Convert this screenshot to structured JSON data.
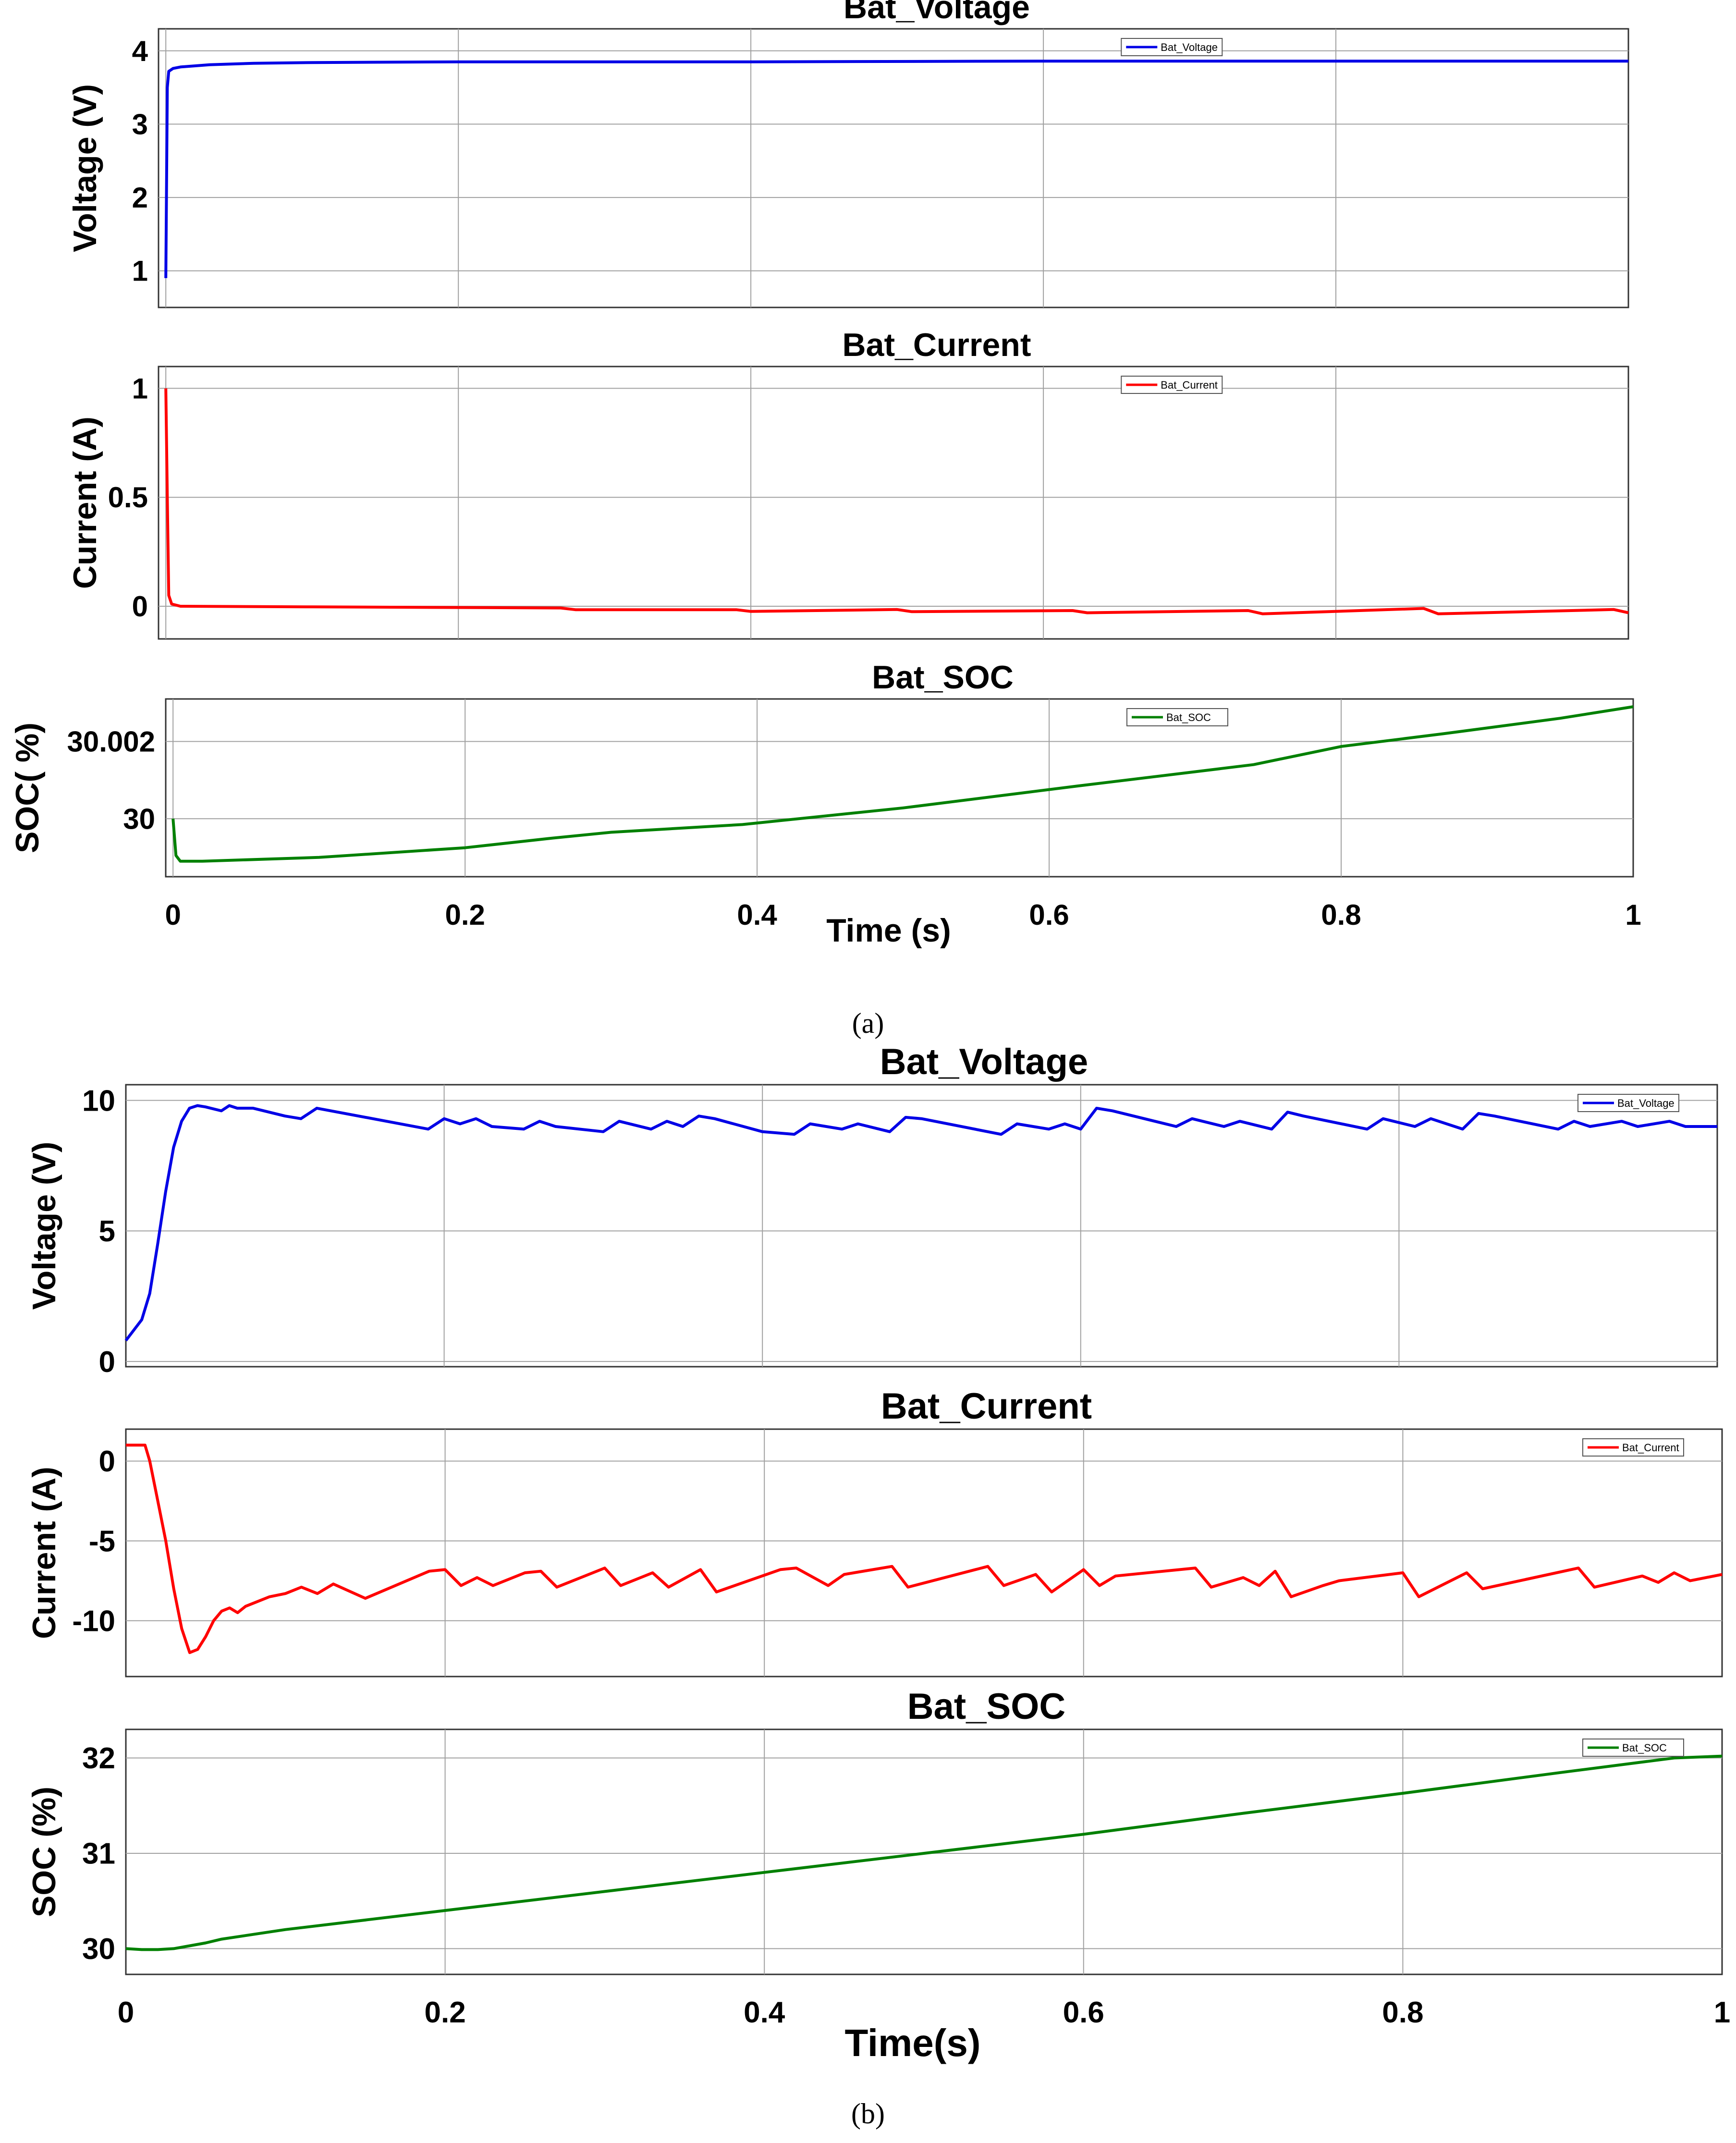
{
  "figure": {
    "captions": [
      "(a)",
      "(b)"
    ]
  },
  "chart_data": [
    {
      "group": "a",
      "type": "line",
      "title": "Bat_Voltage",
      "xlabel": "",
      "ylabel": "Voltage (V)",
      "xlim": [
        -0.005,
        1.0
      ],
      "ylim": [
        0.5,
        4.3
      ],
      "yticks": [
        1,
        2,
        3,
        4
      ],
      "ytick_labels": [
        "1",
        "2",
        "3",
        "4"
      ],
      "xticks": [
        0,
        0.2,
        0.4,
        0.6,
        0.8,
        1
      ],
      "xtick_labels": [],
      "grid": true,
      "legend_position": "top-right",
      "series": [
        {
          "name": "Bat_Voltage",
          "color": "#0000e6",
          "x": [
            0,
            0.001,
            0.002,
            0.005,
            0.01,
            0.03,
            0.06,
            0.1,
            0.2,
            0.4,
            0.6,
            0.8,
            1.0
          ],
          "y": [
            0.9,
            3.5,
            3.72,
            3.76,
            3.78,
            3.81,
            3.83,
            3.84,
            3.85,
            3.85,
            3.86,
            3.86,
            3.86
          ]
        }
      ]
    },
    {
      "group": "a",
      "type": "line",
      "title": "Bat_Current",
      "xlabel": "",
      "ylabel": "Current (A)",
      "xlim": [
        -0.005,
        1.0
      ],
      "ylim": [
        -0.15,
        1.1
      ],
      "yticks": [
        0,
        0.5,
        1
      ],
      "ytick_labels": [
        "0",
        "0.5",
        "1"
      ],
      "xticks": [
        0,
        0.2,
        0.4,
        0.6,
        0.8,
        1
      ],
      "xtick_labels": [],
      "grid": true,
      "legend_position": "top-right",
      "series": [
        {
          "name": "Bat_Current",
          "color": "#ff0000",
          "x": [
            0,
            0.001,
            0.002,
            0.004,
            0.01,
            0.1,
            0.27,
            0.28,
            0.39,
            0.4,
            0.5,
            0.51,
            0.62,
            0.63,
            0.74,
            0.75,
            0.86,
            0.87,
            0.99,
            1.0
          ],
          "y": [
            1.0,
            0.5,
            0.05,
            0.01,
            0.0,
            -0.003,
            -0.008,
            -0.016,
            -0.016,
            -0.024,
            -0.015,
            -0.025,
            -0.02,
            -0.03,
            -0.02,
            -0.035,
            -0.01,
            -0.035,
            -0.015,
            -0.03
          ]
        }
      ]
    },
    {
      "group": "a",
      "type": "line",
      "title": "Bat_SOC",
      "xlabel": "Time (s)",
      "ylabel": "SOC( %)",
      "xlim": [
        -0.005,
        1.0
      ],
      "ylim": [
        29.9985,
        30.0031
      ],
      "yticks": [
        30.0,
        30.002
      ],
      "ytick_labels": [
        "30",
        "30.002"
      ],
      "xticks": [
        0,
        0.2,
        0.4,
        0.6,
        0.8,
        1
      ],
      "xtick_labels": [
        "0",
        "0.2",
        "0.4",
        "0.6",
        "0.8",
        "1"
      ],
      "grid": true,
      "legend_position": "top-right",
      "series": [
        {
          "name": "Bat_SOC",
          "color": "#008000",
          "x": [
            0,
            0.002,
            0.005,
            0.02,
            0.1,
            0.2,
            0.26,
            0.3,
            0.39,
            0.5,
            0.62,
            0.74,
            0.8,
            0.87,
            0.95,
            1.0
          ],
          "y": [
            30.0,
            29.99905,
            29.9989,
            29.9989,
            29.999,
            29.99925,
            29.9995,
            29.99965,
            29.99985,
            30.00028,
            30.00085,
            30.0014,
            30.00187,
            30.0022,
            30.0026,
            30.0029
          ]
        }
      ]
    },
    {
      "group": "b",
      "type": "line",
      "title": "Bat_Voltage",
      "xlabel": "",
      "ylabel": "Voltage (V)",
      "xlim": [
        0,
        1.0
      ],
      "ylim": [
        -0.2,
        10.6
      ],
      "yticks": [
        0,
        5,
        10
      ],
      "ytick_labels": [
        "0",
        "5",
        "10"
      ],
      "xticks": [
        0,
        0.2,
        0.4,
        0.6,
        0.8,
        1
      ],
      "xtick_labels": [],
      "grid": true,
      "legend_position": "top-right",
      "series": [
        {
          "name": "Bat_Voltage",
          "color": "#0000e6",
          "x": [
            0,
            0.01,
            0.015,
            0.02,
            0.025,
            0.03,
            0.035,
            0.04,
            0.045,
            0.05,
            0.06,
            0.065,
            0.07,
            0.08,
            0.1,
            0.11,
            0.12,
            0.19,
            0.2,
            0.21,
            0.22,
            0.23,
            0.25,
            0.26,
            0.27,
            0.3,
            0.31,
            0.33,
            0.34,
            0.35,
            0.36,
            0.37,
            0.4,
            0.42,
            0.43,
            0.45,
            0.46,
            0.48,
            0.49,
            0.5,
            0.55,
            0.56,
            0.58,
            0.59,
            0.6,
            0.61,
            0.62,
            0.66,
            0.67,
            0.69,
            0.7,
            0.72,
            0.73,
            0.74,
            0.78,
            0.79,
            0.81,
            0.82,
            0.84,
            0.85,
            0.86,
            0.9,
            0.91,
            0.92,
            0.94,
            0.95,
            0.97,
            0.98,
            1.0
          ],
          "y": [
            0.8,
            1.6,
            2.6,
            4.5,
            6.5,
            8.2,
            9.2,
            9.7,
            9.8,
            9.75,
            9.6,
            9.8,
            9.7,
            9.7,
            9.4,
            9.3,
            9.7,
            8.9,
            9.3,
            9.1,
            9.3,
            9.0,
            8.9,
            9.2,
            9.0,
            8.8,
            9.2,
            8.9,
            9.2,
            9.0,
            9.4,
            9.3,
            8.8,
            8.7,
            9.1,
            8.9,
            9.1,
            8.8,
            9.35,
            9.3,
            8.7,
            9.1,
            8.9,
            9.1,
            8.9,
            9.7,
            9.6,
            9.0,
            9.3,
            9.0,
            9.2,
            8.9,
            9.55,
            9.4,
            8.9,
            9.3,
            9.0,
            9.3,
            8.9,
            9.5,
            9.4,
            8.9,
            9.2,
            9.0,
            9.2,
            9.0,
            9.2,
            9.0,
            9.0
          ]
        }
      ]
    },
    {
      "group": "b",
      "type": "line",
      "title": "Bat_Current",
      "xlabel": "",
      "ylabel": "Current (A)",
      "xlim": [
        0,
        1.0
      ],
      "ylim": [
        -13.5,
        2.0
      ],
      "yticks": [
        -10,
        -5,
        0
      ],
      "ytick_labels": [
        "-10",
        "-5",
        "0"
      ],
      "xticks": [
        0,
        0.2,
        0.4,
        0.6,
        0.8,
        1
      ],
      "xtick_labels": [],
      "grid": true,
      "legend_position": "top-right",
      "series": [
        {
          "name": "Bat_Current",
          "color": "#ff0000",
          "x": [
            0,
            0.012,
            0.015,
            0.02,
            0.025,
            0.03,
            0.035,
            0.04,
            0.045,
            0.05,
            0.055,
            0.06,
            0.065,
            0.07,
            0.075,
            0.08,
            0.09,
            0.1,
            0.11,
            0.12,
            0.13,
            0.15,
            0.19,
            0.2,
            0.21,
            0.22,
            0.23,
            0.25,
            0.26,
            0.27,
            0.3,
            0.31,
            0.33,
            0.34,
            0.36,
            0.37,
            0.41,
            0.42,
            0.44,
            0.45,
            0.48,
            0.49,
            0.54,
            0.55,
            0.57,
            0.58,
            0.6,
            0.61,
            0.62,
            0.67,
            0.68,
            0.7,
            0.71,
            0.72,
            0.73,
            0.75,
            0.76,
            0.8,
            0.81,
            0.84,
            0.85,
            0.91,
            0.92,
            0.95,
            0.96,
            0.97,
            0.98,
            1.0
          ],
          "y": [
            1.0,
            1.0,
            0.0,
            -2.5,
            -5.0,
            -8.0,
            -10.5,
            -12.0,
            -11.8,
            -11.0,
            -10.0,
            -9.4,
            -9.2,
            -9.5,
            -9.1,
            -8.9,
            -8.5,
            -8.3,
            -7.9,
            -8.3,
            -7.7,
            -8.6,
            -6.9,
            -6.8,
            -7.8,
            -7.3,
            -7.8,
            -7.0,
            -6.9,
            -7.9,
            -6.7,
            -7.8,
            -7.0,
            -7.9,
            -6.8,
            -8.2,
            -6.8,
            -6.7,
            -7.8,
            -7.1,
            -6.6,
            -7.9,
            -6.6,
            -7.8,
            -7.1,
            -8.2,
            -6.8,
            -7.8,
            -7.2,
            -6.7,
            -7.9,
            -7.3,
            -7.8,
            -6.9,
            -8.5,
            -7.8,
            -7.5,
            -7.0,
            -8.5,
            -7.0,
            -8.0,
            -6.7,
            -7.9,
            -7.2,
            -7.6,
            -7.0,
            -7.5,
            -7.1
          ]
        }
      ]
    },
    {
      "group": "b",
      "type": "line",
      "title": "Bat_SOC",
      "xlabel": "Time(s)",
      "ylabel": "SOC (%)",
      "xlim": [
        0,
        1.0
      ],
      "ylim": [
        29.73,
        32.3
      ],
      "yticks": [
        30,
        31,
        32
      ],
      "ytick_labels": [
        "30",
        "31",
        "32"
      ],
      "xticks": [
        0,
        0.2,
        0.4,
        0.6,
        0.8,
        1
      ],
      "xtick_labels": [
        "0",
        "0.2",
        "0.4",
        "0.6",
        "0.8",
        "1"
      ],
      "grid": true,
      "legend_position": "top-right",
      "series": [
        {
          "name": "Bat_SOC",
          "color": "#008000",
          "x": [
            0,
            0.01,
            0.02,
            0.03,
            0.04,
            0.05,
            0.06,
            0.1,
            0.2,
            0.3,
            0.4,
            0.5,
            0.6,
            0.7,
            0.8,
            0.9,
            0.97,
            1.0
          ],
          "y": [
            30.0,
            29.99,
            29.99,
            30.0,
            30.03,
            30.06,
            30.1,
            30.2,
            30.4,
            30.6,
            30.8,
            31.0,
            31.2,
            31.42,
            31.63,
            31.85,
            32.0,
            32.02
          ]
        }
      ]
    }
  ]
}
